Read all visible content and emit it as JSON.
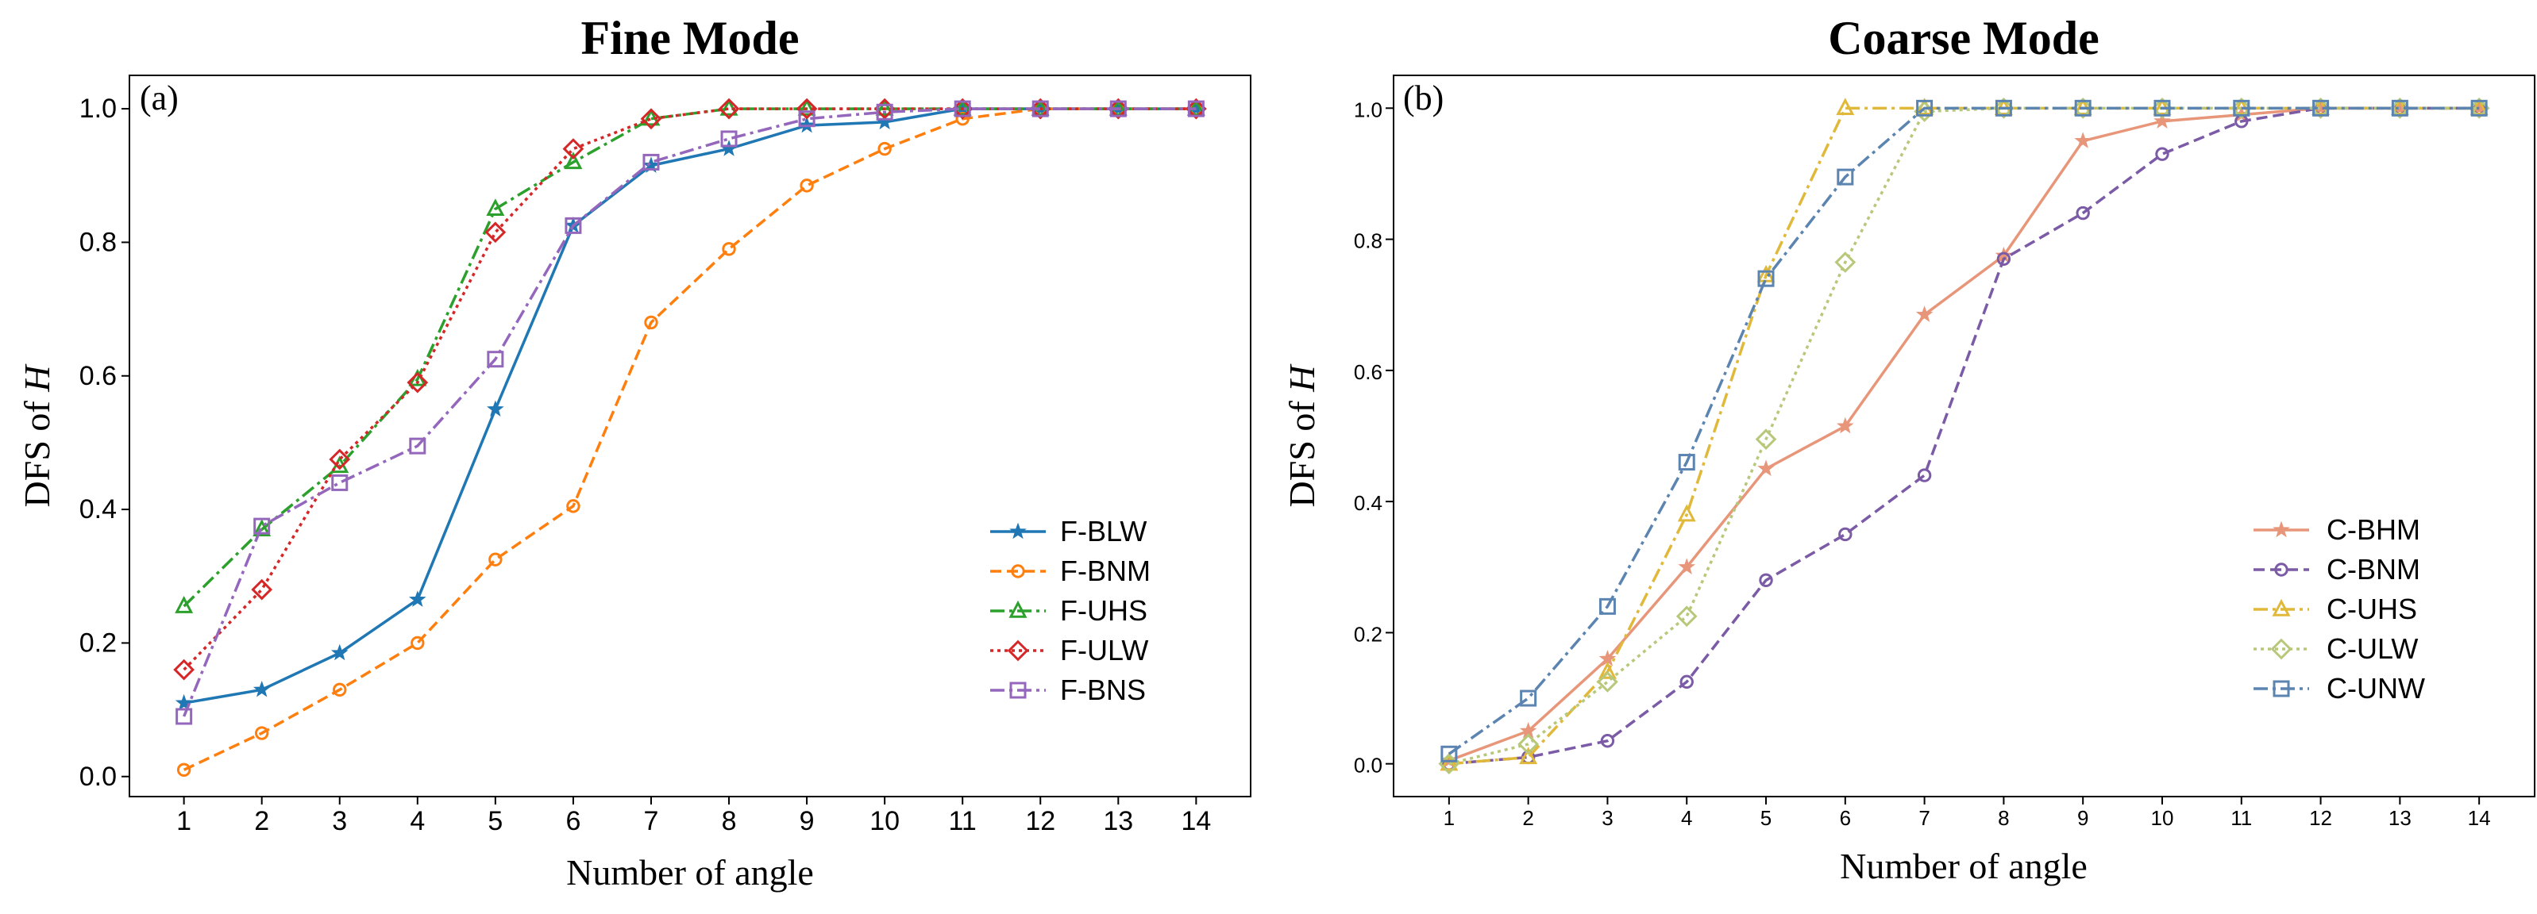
{
  "chart_data": [
    {
      "panel": "(a)",
      "type": "line",
      "title": "Fine Mode",
      "xlabel": "Number of angle",
      "ylabel": "DFS of H",
      "ylabel_main": "DFS of ",
      "ylabel_var": "H",
      "xlim": [
        0.3,
        14.7
      ],
      "ylim": [
        -0.03,
        1.05
      ],
      "x": [
        1,
        2,
        3,
        4,
        5,
        6,
        7,
        8,
        9,
        10,
        11,
        12,
        13,
        14
      ],
      "xticks": [
        "1",
        "2",
        "3",
        "4",
        "5",
        "6",
        "7",
        "8",
        "9",
        "10",
        "11",
        "12",
        "13",
        "14"
      ],
      "yticks": [
        0.0,
        0.2,
        0.4,
        0.6,
        0.8,
        1.0
      ],
      "ytick_labels": [
        "0.0",
        "0.2",
        "0.4",
        "0.6",
        "0.8",
        "1.0"
      ],
      "legend_position": "lower-right",
      "series": [
        {
          "name": "F-BLW",
          "color": "#1f77b4",
          "dash": "solid",
          "marker": "star",
          "values": [
            0.11,
            0.13,
            0.185,
            0.265,
            0.55,
            0.825,
            0.915,
            0.94,
            0.975,
            0.98,
            1.0,
            1.0,
            1.0,
            1.0
          ]
        },
        {
          "name": "F-BNM",
          "color": "#ff7f0e",
          "dash": "dashed",
          "marker": "circle",
          "values": [
            0.01,
            0.065,
            0.13,
            0.2,
            0.325,
            0.405,
            0.68,
            0.79,
            0.885,
            0.94,
            0.985,
            1.0,
            1.0,
            1.0
          ]
        },
        {
          "name": "F-UHS",
          "color": "#2ca02c",
          "dash": "dashdot",
          "marker": "triangle",
          "values": [
            0.255,
            0.37,
            0.465,
            0.595,
            0.85,
            0.92,
            0.985,
            1.0,
            1.0,
            1.0,
            1.0,
            1.0,
            1.0,
            1.0
          ]
        },
        {
          "name": "F-ULW",
          "color": "#d62728",
          "dash": "dotted",
          "marker": "diamond",
          "values": [
            0.16,
            0.28,
            0.475,
            0.59,
            0.815,
            0.94,
            0.985,
            1.0,
            1.0,
            1.0,
            1.0,
            1.0,
            1.0,
            1.0
          ]
        },
        {
          "name": "F-BNS",
          "color": "#9467bd",
          "dash": "dashdot",
          "marker": "square",
          "values": [
            0.09,
            0.375,
            0.44,
            0.495,
            0.625,
            0.825,
            0.92,
            0.955,
            0.985,
            0.995,
            1.0,
            1.0,
            1.0,
            1.0
          ]
        }
      ]
    },
    {
      "panel": "(b)",
      "type": "line",
      "title": "Coarse Mode",
      "xlabel": "Number of angle",
      "ylabel": "DFS of H",
      "ylabel_main": "DFS of ",
      "ylabel_var": "H",
      "xlim": [
        0.3,
        14.7
      ],
      "ylim": [
        -0.05,
        1.05
      ],
      "x": [
        1,
        2,
        3,
        4,
        5,
        6,
        7,
        8,
        9,
        10,
        11,
        12,
        13,
        14
      ],
      "xticks": [
        "1",
        "2",
        "3",
        "4",
        "5",
        "6",
        "7",
        "8",
        "9",
        "10",
        "11",
        "12",
        "13",
        "14"
      ],
      "yticks": [
        0.0,
        0.2,
        0.4,
        0.6,
        0.8,
        1.0
      ],
      "ytick_labels": [
        "0.0",
        "0.2",
        "0.4",
        "0.6",
        "0.8",
        "1.0"
      ],
      "legend_position": "lower-right",
      "series": [
        {
          "name": "C-BHM",
          "color": "#e8967a",
          "dash": "solid",
          "marker": "star",
          "values": [
            0.005,
            0.05,
            0.16,
            0.3,
            0.45,
            0.515,
            0.685,
            0.775,
            0.95,
            0.98,
            0.99,
            1.0,
            1.0,
            1.0
          ]
        },
        {
          "name": "C-BNM",
          "color": "#7b5aa6",
          "dash": "dashed",
          "marker": "circle",
          "values": [
            0.0,
            0.01,
            0.035,
            0.125,
            0.28,
            0.35,
            0.44,
            0.77,
            0.84,
            0.93,
            0.98,
            1.0,
            1.0,
            1.0
          ]
        },
        {
          "name": "C-UHS",
          "color": "#e0b83a",
          "dash": "dashdot",
          "marker": "triangle",
          "values": [
            0.0,
            0.01,
            0.14,
            0.38,
            0.745,
            1.0,
            1.0,
            1.0,
            1.0,
            1.0,
            1.0,
            1.0,
            1.0,
            1.0
          ]
        },
        {
          "name": "C-ULW",
          "color": "#b8c87a",
          "dash": "dotted",
          "marker": "diamond",
          "values": [
            0.0,
            0.03,
            0.125,
            0.225,
            0.495,
            0.765,
            0.995,
            1.0,
            1.0,
            1.0,
            1.0,
            1.0,
            1.0,
            1.0
          ]
        },
        {
          "name": "C-UNW",
          "color": "#5b84b1",
          "dash": "dashdot",
          "marker": "square",
          "values": [
            0.015,
            0.1,
            0.24,
            0.46,
            0.74,
            0.895,
            1.0,
            1.0,
            1.0,
            1.0,
            1.0,
            1.0,
            1.0,
            1.0
          ]
        }
      ]
    }
  ]
}
